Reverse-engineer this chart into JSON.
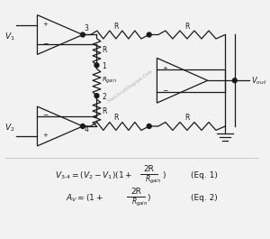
{
  "bg_color": "#f2f2f2",
  "line_color": "#1a1a1a",
  "watermark": "FreeCircuitDiagram.Com",
  "fig_width": 3.0,
  "fig_height": 2.65,
  "dpi": 100,
  "xlim": [
    0,
    300
  ],
  "ylim": [
    0,
    265
  ]
}
